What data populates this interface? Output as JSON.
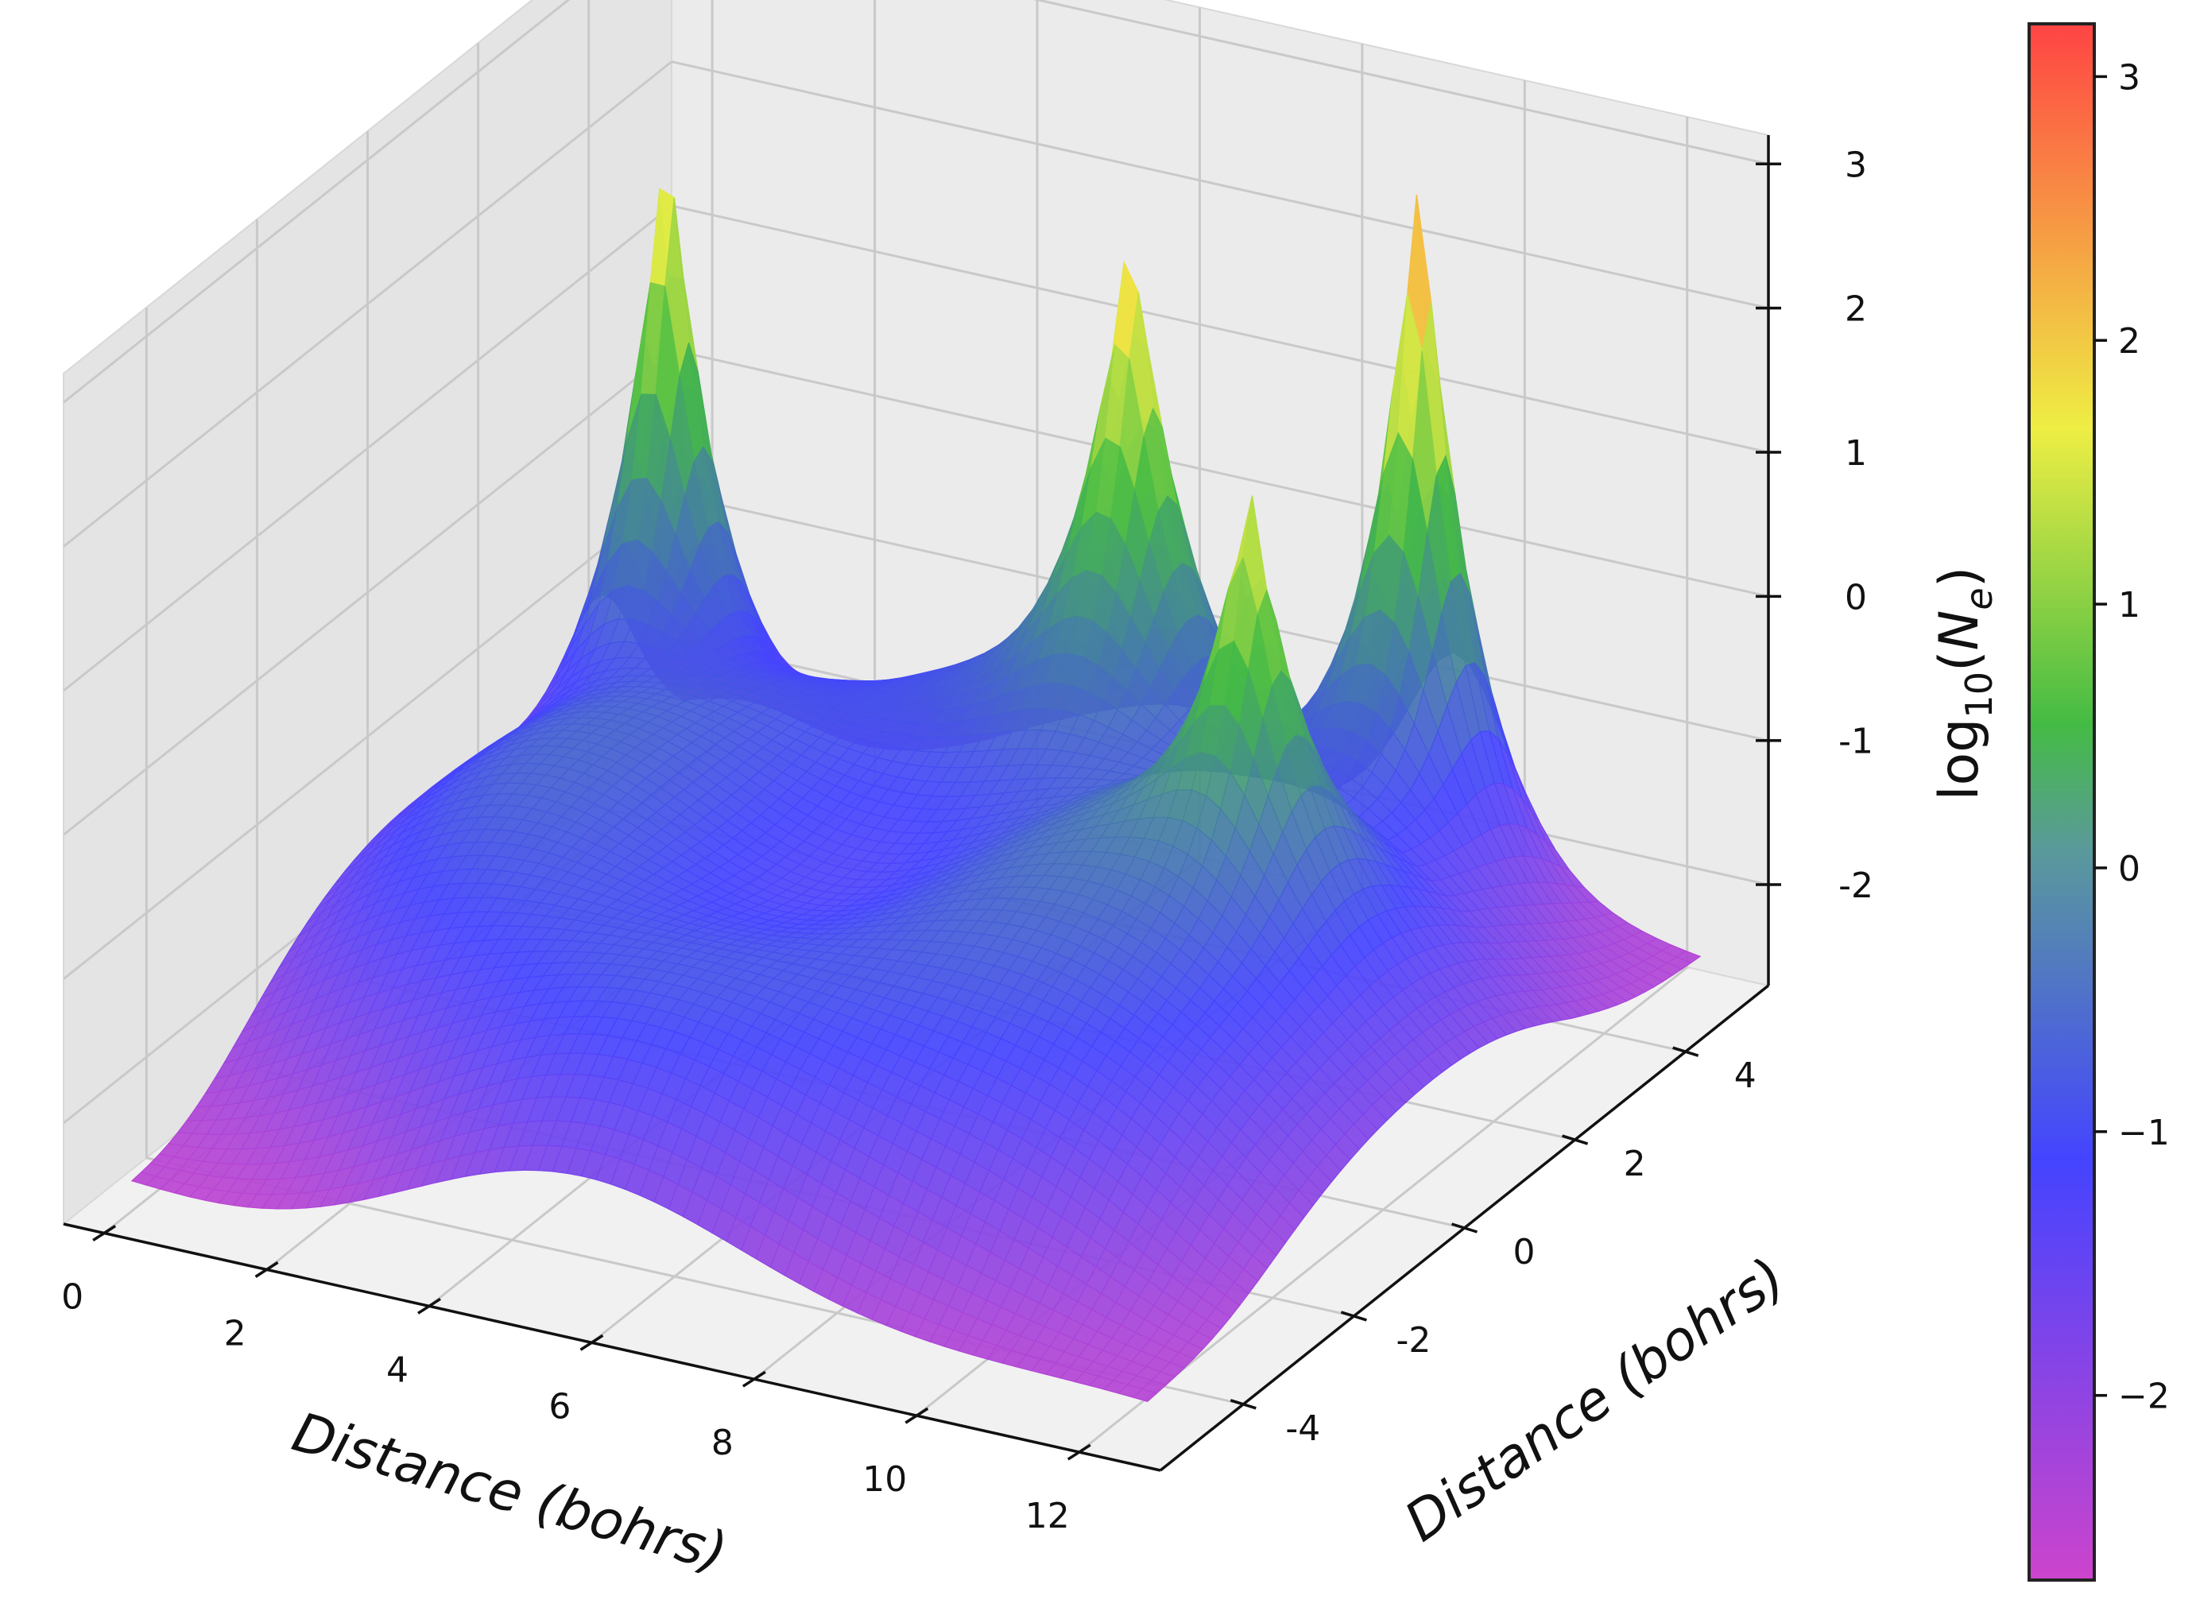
{
  "chart_data": {
    "type": "surface3d",
    "title": "",
    "xlabel": "Distance (bohrs)",
    "ylabel": "Distance (bohrs)",
    "zlabel": "",
    "colorbar_label": "log10(Ne)",
    "x_ticks": [
      "0",
      "2",
      "4",
      "6",
      "8",
      "10",
      "12"
    ],
    "y_ticks": [
      "-4",
      "-2",
      "0",
      "2",
      "4"
    ],
    "z_ticks": [
      "-2",
      "-1",
      "0",
      "1",
      "2",
      "3"
    ],
    "colorbar_ticks": [
      "3",
      "2",
      "1",
      "0",
      "−1",
      "−2"
    ],
    "xlim": [
      -0.5,
      13
    ],
    "ylim": [
      -5.5,
      5.5
    ],
    "zlim": [
      -2.7,
      3.2
    ],
    "colorbar_range": [
      -2.7,
      3.2
    ],
    "colormap": "plasma-like (magenta → blue → green → yellow → red)",
    "colormap_stops": [
      "#cc44cc",
      "#4444ff",
      "#44bb44",
      "#eeee44",
      "#ff4444"
    ],
    "grid": true,
    "peaks": [
      {
        "x": 0.8,
        "y": 3.5,
        "z": 2.5
      },
      {
        "x": 6.5,
        "y": 3.5,
        "z": 2.5
      },
      {
        "x": 9.5,
        "y": 4.3,
        "z": 3.1
      },
      {
        "x": 9.8,
        "y": 0.8,
        "z": 1.9
      }
    ],
    "surface_floor_z": -2.5,
    "surface_plateau_z": -0.9
  }
}
